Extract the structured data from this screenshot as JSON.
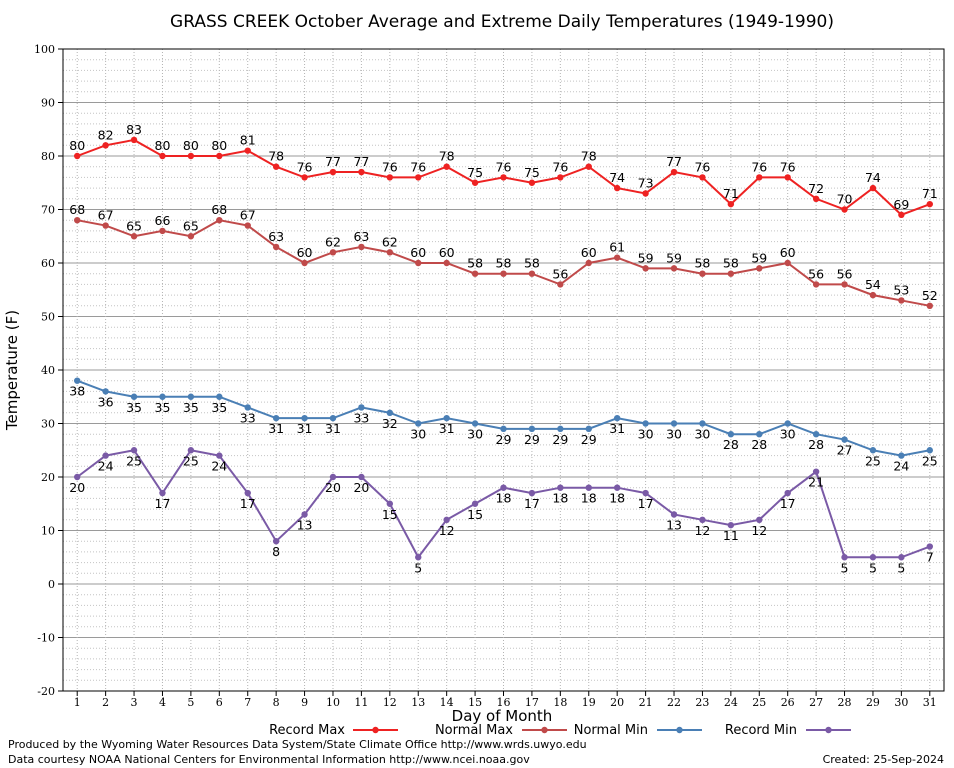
{
  "chart_data": {
    "type": "line",
    "title": "GRASS CREEK October Average and Extreme Daily Temperatures (1949-1990)",
    "xlabel": "Day of Month",
    "ylabel": "Temperature (F)",
    "ylim": [
      -20,
      100
    ],
    "yticks": [
      -20,
      -10,
      0,
      10,
      20,
      30,
      40,
      50,
      60,
      70,
      80,
      90,
      100
    ],
    "grid": true,
    "legend_placement": "bottom",
    "x": [
      1,
      2,
      3,
      4,
      5,
      6,
      7,
      8,
      9,
      10,
      11,
      12,
      13,
      14,
      15,
      16,
      17,
      18,
      19,
      20,
      21,
      22,
      23,
      24,
      25,
      26,
      27,
      28,
      29,
      30,
      31
    ],
    "series": [
      {
        "name": "Record Max",
        "color": "#ee2222",
        "label_position": "above",
        "values": [
          80,
          82,
          83,
          80,
          80,
          80,
          81,
          78,
          76,
          77,
          77,
          76,
          76,
          78,
          75,
          76,
          75,
          76,
          78,
          74,
          73,
          77,
          76,
          71,
          76,
          76,
          72,
          70,
          74,
          69,
          71
        ]
      },
      {
        "name": "Normal Max",
        "color": "#c04a4a",
        "label_position": "above",
        "values": [
          68,
          67,
          65,
          66,
          65,
          68,
          67,
          63,
          60,
          62,
          63,
          62,
          60,
          60,
          58,
          58,
          58,
          56,
          60,
          61,
          59,
          59,
          58,
          58,
          59,
          60,
          56,
          56,
          54,
          53,
          52
        ]
      },
      {
        "name": "Normal Min",
        "color": "#4a7fb5",
        "label_position": "below",
        "values": [
          38,
          36,
          35,
          35,
          35,
          35,
          33,
          31,
          31,
          31,
          33,
          32,
          30,
          31,
          30,
          29,
          29,
          29,
          29,
          31,
          30,
          30,
          30,
          28,
          28,
          30,
          28,
          27,
          25,
          24,
          25
        ]
      },
      {
        "name": "Record Min",
        "color": "#7a5aa6",
        "label_position": "below",
        "values": [
          20,
          24,
          25,
          17,
          25,
          24,
          17,
          8,
          13,
          20,
          20,
          15,
          5,
          12,
          15,
          18,
          17,
          18,
          18,
          18,
          17,
          13,
          12,
          11,
          12,
          17,
          21,
          5,
          5,
          5,
          7
        ]
      }
    ]
  },
  "footer": {
    "line1": "Produced by the Wyoming Water Resources Data System/State Climate Office http://www.wrds.uwyo.edu",
    "line2": "Data courtesy NOAA National Centers for Environmental Information http://www.ncei.noaa.gov",
    "created": "Created:  25-Sep-2024"
  }
}
